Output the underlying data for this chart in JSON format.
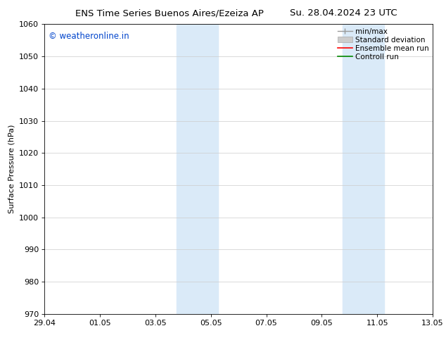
{
  "title_left": "ENS Time Series Buenos Aires/Ezeiza AP",
  "title_right": "Su. 28.04.2024 23 UTC",
  "ylabel": "Surface Pressure (hPa)",
  "xtick_labels": [
    "29.04",
    "01.05",
    "03.05",
    "05.05",
    "07.05",
    "09.05",
    "11.05",
    "13.05"
  ],
  "xtick_positions": [
    0,
    2,
    4,
    6,
    8,
    10,
    12,
    14
  ],
  "xlim": [
    0,
    14
  ],
  "ylim": [
    970,
    1060
  ],
  "ytick_step": 10,
  "watermark": "© weatheronline.in",
  "watermark_color": "#0044cc",
  "shaded_regions": [
    {
      "x_start": 4.75,
      "x_end": 6.25
    },
    {
      "x_start": 10.75,
      "x_end": 12.25
    }
  ],
  "shaded_color": "#daeaf8",
  "legend_labels": [
    "min/max",
    "Standard deviation",
    "Ensemble mean run",
    "Controll run"
  ],
  "legend_colors_line": [
    "#999999",
    "#cccccc",
    "#ff0000",
    "#008800"
  ],
  "bg_color": "#ffffff",
  "grid_color": "#cccccc",
  "title_fontsize": 9.5,
  "tick_fontsize": 8,
  "ylabel_fontsize": 8,
  "watermark_fontsize": 8.5,
  "legend_fontsize": 7.5
}
